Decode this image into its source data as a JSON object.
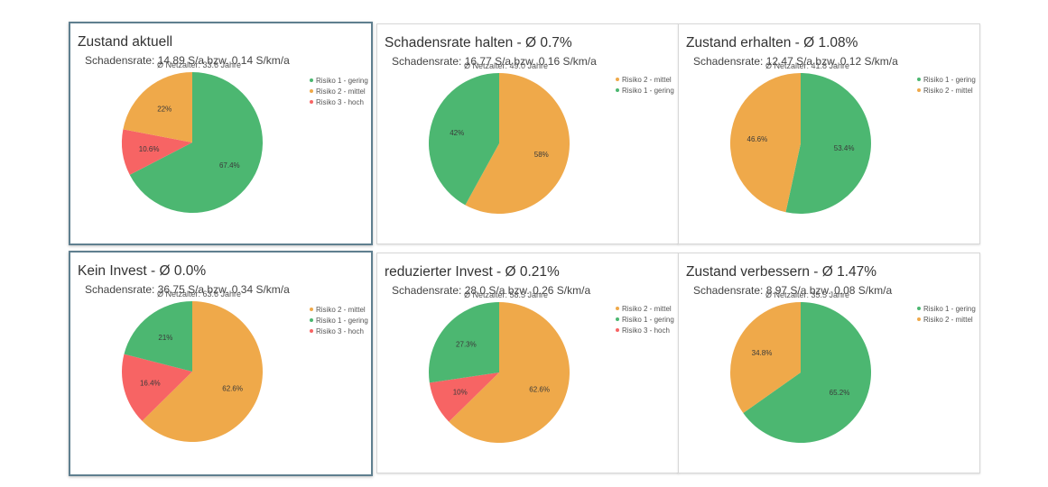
{
  "colors": {
    "Risiko 1 - gering": "#4cb771",
    "Risiko 2 - mittel": "#efa94a",
    "Risiko 3 - hoch": "#f76464"
  },
  "chart_data": [
    {
      "type": "pie",
      "title": "Zustand aktuell",
      "subtitle": "Schadensrate: 14.89 S/a bzw. 0.14 S/km/a",
      "annotation": "Ø Netzalter: 33.6 Jahre",
      "legend": [
        "Risiko 1 - gering",
        "Risiko 2 - mittel",
        "Risiko 3 - hoch"
      ],
      "legend_position": "right",
      "slices": [
        {
          "label": "Risiko 1 - gering",
          "value": 67.4,
          "text": "67.4%"
        },
        {
          "label": "Risiko 3 - hoch",
          "value": 10.6,
          "text": "10.6%"
        },
        {
          "label": "Risiko 2 - mittel",
          "value": 22.0,
          "text": "22%"
        }
      ]
    },
    {
      "type": "pie",
      "title": "Schadensrate halten  - Ø 0.7%",
      "subtitle": "Schadensrate: 16.77 S/a bzw. 0.16 S/km/a",
      "annotation": "Ø Netzalter: 49.0 Jahre",
      "legend": [
        "Risiko 2 - mittel",
        "Risiko 1 - gering"
      ],
      "legend_position": "right",
      "slices": [
        {
          "label": "Risiko 2 - mittel",
          "value": 58.0,
          "text": "58%"
        },
        {
          "label": "Risiko 1 - gering",
          "value": 42.0,
          "text": "42%"
        }
      ]
    },
    {
      "type": "pie",
      "title": "Zustand erhalten  - Ø 1.08%",
      "subtitle": "Schadensrate: 12.47 S/a bzw. 0.12 S/km/a",
      "annotation": "Ø Netzalter: 41.8 Jahre",
      "legend": [
        "Risiko 1 - gering",
        "Risiko 2 - mittel"
      ],
      "legend_position": "right",
      "slices": [
        {
          "label": "Risiko 1 - gering",
          "value": 53.4,
          "text": "53.4%"
        },
        {
          "label": "Risiko 2 - mittel",
          "value": 46.6,
          "text": "46.6%"
        }
      ]
    },
    {
      "type": "pie",
      "title": "Kein Invest  - Ø 0.0%",
      "subtitle": "Schadensrate: 36.75 S/a bzw. 0.34 S/km/a",
      "annotation": "Ø Netzalter: 63.6 Jahre",
      "legend": [
        "Risiko 2 - mittel",
        "Risiko 1 - gering",
        "Risiko 3 - hoch"
      ],
      "legend_position": "right",
      "slices": [
        {
          "label": "Risiko 2 - mittel",
          "value": 62.6,
          "text": "62.6%"
        },
        {
          "label": "Risiko 3 - hoch",
          "value": 16.4,
          "text": "16.4%"
        },
        {
          "label": "Risiko 1 - gering",
          "value": 21.0,
          "text": "21%"
        }
      ]
    },
    {
      "type": "pie",
      "title": "reduzierter Invest  - Ø 0.21%",
      "subtitle": "Schadensrate: 28.0 S/a bzw. 0.26 S/km/a",
      "annotation": "Ø Netzalter: 58.5 Jahre",
      "legend": [
        "Risiko 2 - mittel",
        "Risiko 1 - gering",
        "Risiko 3 - hoch"
      ],
      "legend_position": "right",
      "slices": [
        {
          "label": "Risiko 2 - mittel",
          "value": 62.6,
          "text": "62.6%"
        },
        {
          "label": "Risiko 3 - hoch",
          "value": 10.0,
          "text": "10%"
        },
        {
          "label": "Risiko 1 - gering",
          "value": 27.3,
          "text": "27.3%"
        }
      ]
    },
    {
      "type": "pie",
      "title": "Zustand verbessern  - Ø 1.47%",
      "subtitle": "Schadensrate: 8.97 S/a bzw. 0.08 S/km/a",
      "annotation": "Ø Netzalter: 35.5 Jahre",
      "legend": [
        "Risiko 1 - gering",
        "Risiko 2 - mittel"
      ],
      "legend_position": "right",
      "slices": [
        {
          "label": "Risiko 1 - gering",
          "value": 65.2,
          "text": "65.2%"
        },
        {
          "label": "Risiko 2 - mittel",
          "value": 34.8,
          "text": "34.8%"
        }
      ]
    }
  ]
}
